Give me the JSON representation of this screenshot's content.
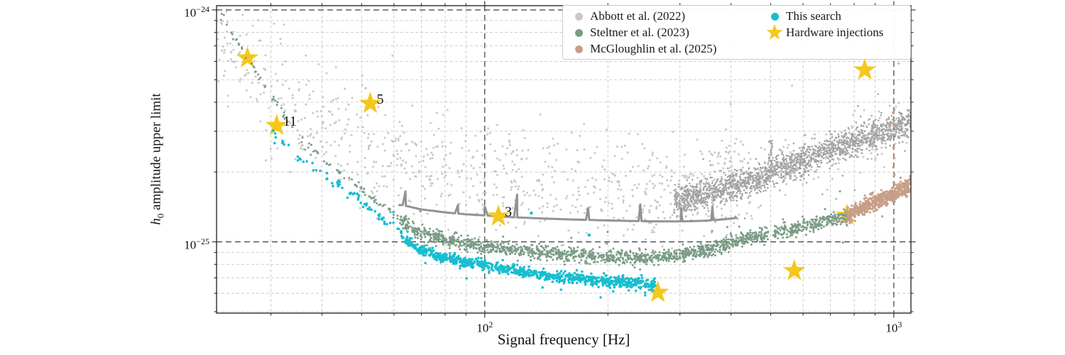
{
  "chart_data": {
    "type": "scatter",
    "title": "",
    "xlabel": "Signal frequency [Hz]",
    "ylabel_parts": {
      "var": "h",
      "sub": "0",
      "rest": " amplitude upper limit"
    },
    "xscale": "log",
    "yscale": "log",
    "xlim": [
      22.1,
      1101
    ],
    "ylim": [
      4.93e-26,
      1.043e-24
    ],
    "grid": {
      "minor": true,
      "major": true,
      "style": "dashed"
    },
    "x_ticks": [
      {
        "value": 100,
        "base": "10",
        "exp": "2"
      },
      {
        "value": 1000,
        "base": "10",
        "exp": "3"
      }
    ],
    "y_ticks": [
      {
        "value": 1e-24,
        "base": "10",
        "exp": "−24"
      },
      {
        "value": 1e-25,
        "base": "10",
        "exp": "−25"
      }
    ],
    "series": [
      {
        "name": "Abbott et al. (2022) scattered points",
        "color": "#c8c8c8",
        "kind": "cloud",
        "r": 1.5,
        "layer": 0,
        "curve": [
          [
            22,
            8e-25
          ],
          [
            25,
            6.3e-25
          ],
          [
            28,
            5.2e-25
          ],
          [
            32,
            4.3e-25
          ],
          [
            36,
            3.7e-25
          ],
          [
            40,
            3.3e-25
          ],
          [
            45,
            2.95e-25
          ],
          [
            50,
            2.7e-25
          ],
          [
            60,
            2.35e-25
          ],
          [
            70,
            2.15e-25
          ],
          [
            80,
            2e-25
          ],
          [
            100,
            1.85e-25
          ],
          [
            120,
            1.75e-25
          ],
          [
            150,
            1.68e-25
          ],
          [
            200,
            1.62e-25
          ],
          [
            250,
            1.6e-25
          ],
          [
            300,
            1.63e-25
          ],
          [
            350,
            1.7e-25
          ],
          [
            400,
            1.8e-25
          ],
          [
            450,
            1.92e-25
          ],
          [
            500,
            2e-25
          ],
          [
            600,
            2.25e-25
          ],
          [
            700,
            2.5e-25
          ],
          [
            800,
            2.7e-25
          ],
          [
            900,
            2.88e-25
          ],
          [
            1000,
            3.05e-25
          ],
          [
            1100,
            3.3e-25
          ]
        ],
        "segments": [
          [
            22,
            60,
            270,
            0.14
          ],
          [
            60,
            200,
            320,
            0.11
          ],
          [
            200,
            460,
            280,
            0.1
          ],
          [
            460,
            1100,
            160,
            0.07
          ]
        ],
        "outlier_frac": 0.035,
        "outlier_up": 0.38
      },
      {
        "name": "Abbott et al. (2022) dense band",
        "color": "#a3a3a3",
        "kind": "band",
        "r": 1.3,
        "layer": 0,
        "curve": [
          [
            290,
            1.5e-25
          ],
          [
            350,
            1.62e-25
          ],
          [
            400,
            1.74e-25
          ],
          [
            450,
            1.85e-25
          ],
          [
            498,
            1.92e-25
          ],
          [
            502,
            2.06e-25
          ],
          [
            550,
            2.13e-25
          ],
          [
            600,
            2.22e-25
          ],
          [
            650,
            2.38e-25
          ],
          [
            700,
            2.5e-25
          ],
          [
            750,
            2.62e-25
          ],
          [
            800,
            2.72e-25
          ],
          [
            850,
            2.82e-25
          ],
          [
            900,
            2.9e-25
          ],
          [
            950,
            2.98e-25
          ],
          [
            1000,
            3.06e-25
          ],
          [
            1050,
            3.18e-25
          ],
          [
            1100,
            3.35e-25
          ]
        ],
        "segments": [
          [
            290,
            1100,
            1750,
            0.03
          ]
        ],
        "clusters": [
          {
            "f": 500,
            "lo": 2e-25,
            "hi": 2.75e-25,
            "n": 26
          },
          {
            "f": 600,
            "lo": 2.2e-25,
            "hi": 2.6e-25,
            "n": 12
          }
        ]
      },
      {
        "name": "Abbott et al. (2022) upper-limit line",
        "color": "#8d8d8d",
        "kind": "line",
        "w": 3,
        "layer": 0,
        "curve": [
          [
            63,
            1.44e-25
          ],
          [
            70,
            1.38e-25
          ],
          [
            80,
            1.34e-25
          ],
          [
            90,
            1.315e-25
          ],
          [
            100,
            1.3e-25
          ],
          [
            110,
            1.285e-25
          ],
          [
            120,
            1.275e-25
          ],
          [
            140,
            1.26e-25
          ],
          [
            160,
            1.25e-25
          ],
          [
            180,
            1.243e-25
          ],
          [
            200,
            1.237e-25
          ],
          [
            230,
            1.23e-25
          ],
          [
            260,
            1.226e-25
          ],
          [
            290,
            1.225e-25
          ],
          [
            320,
            1.228e-25
          ],
          [
            350,
            1.235e-25
          ],
          [
            380,
            1.248e-25
          ],
          [
            415,
            1.27e-25
          ]
        ],
        "spikes": [
          [
            64,
            1.65e-25
          ],
          [
            86,
            1.44e-25
          ],
          [
            100,
            1.42e-25
          ],
          [
            120,
            1.6e-25
          ],
          [
            179,
            1.4e-25
          ],
          [
            240,
            1.45e-25
          ],
          [
            302,
            1.4e-25
          ],
          [
            360,
            1.42e-25
          ]
        ]
      },
      {
        "name": "Steltner et al. (2023)",
        "color": "#7b9c86",
        "kind": "band",
        "r": 1.5,
        "layer": 1,
        "curve": [
          [
            22.5,
            9.6e-25
          ],
          [
            24,
            8e-25
          ],
          [
            26,
            6.3e-25
          ],
          [
            28,
            5.2e-25
          ],
          [
            30,
            4.3e-25
          ],
          [
            33,
            3.3e-25
          ],
          [
            36,
            2.7e-25
          ],
          [
            40,
            2.3e-25
          ],
          [
            44,
            2e-25
          ],
          [
            48,
            1.78e-25
          ],
          [
            52,
            1.58e-25
          ],
          [
            56,
            1.45e-25
          ],
          [
            60,
            1.32e-25
          ],
          [
            65,
            1.16e-25
          ],
          [
            70,
            1.09e-25
          ],
          [
            80,
            1.03e-25
          ],
          [
            90,
            9.9e-26
          ],
          [
            100,
            9.6e-26
          ],
          [
            120,
            9.2e-26
          ],
          [
            150,
            8.9e-26
          ],
          [
            200,
            8.6e-26
          ],
          [
            250,
            8.5e-26
          ],
          [
            300,
            8.8e-26
          ],
          [
            350,
            9.3e-26
          ],
          [
            400,
            9.9e-26
          ],
          [
            450,
            1.04e-25
          ],
          [
            500,
            1.09e-25
          ],
          [
            560,
            1.13e-25
          ],
          [
            620,
            1.18e-25
          ],
          [
            680,
            1.23e-25
          ],
          [
            730,
            1.27e-25
          ],
          [
            768,
            1.3e-25
          ]
        ],
        "segments": [
          [
            22.5,
            62,
            95,
            0.01
          ],
          [
            62,
            768,
            1550,
            0.015
          ]
        ],
        "skip": [
          [
            493,
            505
          ]
        ]
      },
      {
        "name": "McGloughlin et al. (2025)",
        "color": "#c79e87",
        "kind": "band",
        "r": 1.6,
        "layer": 1,
        "curve": [
          [
            768,
            1.29e-25
          ],
          [
            800,
            1.34e-25
          ],
          [
            850,
            1.42e-25
          ],
          [
            900,
            1.49e-25
          ],
          [
            950,
            1.55e-25
          ],
          [
            1000,
            1.62e-25
          ],
          [
            1050,
            1.69e-25
          ],
          [
            1100,
            1.76e-25
          ]
        ],
        "segments": [
          [
            768,
            1100,
            520,
            0.018
          ]
        ],
        "extra_points": [
          [
            997,
            3.6e-25
          ],
          [
            1000,
            3.2e-25
          ],
          [
            1003,
            2.9e-25
          ],
          [
            999,
            2.55e-25
          ],
          [
            1001,
            2.3e-25
          ],
          [
            998,
            2.1e-25
          ],
          [
            1002,
            1.95e-25
          ],
          [
            1000,
            1.8e-25
          ]
        ]
      },
      {
        "name": "This search",
        "color": "#17becf",
        "kind": "band",
        "r": 1.8,
        "layer": 1,
        "curve": [
          [
            30,
            3e-25
          ],
          [
            32,
            2.72e-25
          ],
          [
            34,
            2.4e-25
          ],
          [
            36,
            2.2e-25
          ],
          [
            38,
            2.1e-25
          ],
          [
            40,
            1.95e-25
          ],
          [
            42,
            1.85e-25
          ],
          [
            44,
            1.75e-25
          ],
          [
            46,
            1.55e-25
          ],
          [
            48,
            1.62e-25
          ],
          [
            50,
            1.5e-25
          ],
          [
            53,
            1.38e-25
          ],
          [
            56,
            1.25e-25
          ],
          [
            58,
            1.18e-25
          ],
          [
            60,
            1.27e-25
          ],
          [
            62,
            1.1e-25
          ],
          [
            64,
            1.02e-25
          ],
          [
            67,
            9.6e-26
          ],
          [
            70,
            9.2e-26
          ],
          [
            75,
            8.8e-26
          ],
          [
            80,
            8.5e-26
          ],
          [
            90,
            8.2e-26
          ],
          [
            100,
            8e-26
          ],
          [
            110,
            7.7e-26
          ],
          [
            120,
            7.5e-26
          ],
          [
            135,
            7.25e-26
          ],
          [
            150,
            7.1e-26
          ],
          [
            170,
            6.95e-26
          ],
          [
            190,
            6.8e-26
          ],
          [
            215,
            6.7e-26
          ],
          [
            240,
            6.6e-26
          ],
          [
            262,
            6.55e-26
          ]
        ],
        "segments": [
          [
            30,
            64,
            75,
            0.01
          ],
          [
            64,
            262,
            830,
            0.011
          ]
        ],
        "extra_points": [
          [
            130,
            1.33e-25
          ],
          [
            180,
            1.07e-25
          ]
        ]
      }
    ],
    "hardware_injections": {
      "marker": "star",
      "color": "#f5c71d",
      "points": [
        {
          "f": 26.3,
          "h": 6.2e-25,
          "label": ""
        },
        {
          "f": 52.5,
          "h": 3.95e-25,
          "label": "5"
        },
        {
          "f": 31.0,
          "h": 3.17e-25,
          "label": "11"
        },
        {
          "f": 108,
          "h": 1.29e-25,
          "label": "3"
        },
        {
          "f": 265,
          "h": 6.05e-26,
          "label": ""
        },
        {
          "f": 571,
          "h": 7.5e-26,
          "label": ""
        },
        {
          "f": 768,
          "h": 1.3e-25,
          "label": ""
        },
        {
          "f": 849,
          "h": 5.5e-25,
          "label": ""
        }
      ]
    }
  },
  "legend": {
    "position": "upper right",
    "columns": 2,
    "items": [
      {
        "label": "Abbott et al. (2022)",
        "marker": "dot",
        "color": "#c8c8c8",
        "column": 0,
        "row": 0
      },
      {
        "label": "Steltner et al. (2023)",
        "marker": "dot",
        "color": "#7b9c86",
        "column": 0,
        "row": 1
      },
      {
        "label": "McGloughlin et al. (2025)",
        "marker": "dot",
        "color": "#c79e87",
        "column": 0,
        "row": 2
      },
      {
        "label": "This search",
        "marker": "dot",
        "color": "#17becf",
        "column": 1,
        "row": 0
      },
      {
        "label": "Hardware injections",
        "marker": "star",
        "color": "#f5c71d",
        "column": 1,
        "row": 1
      }
    ]
  }
}
